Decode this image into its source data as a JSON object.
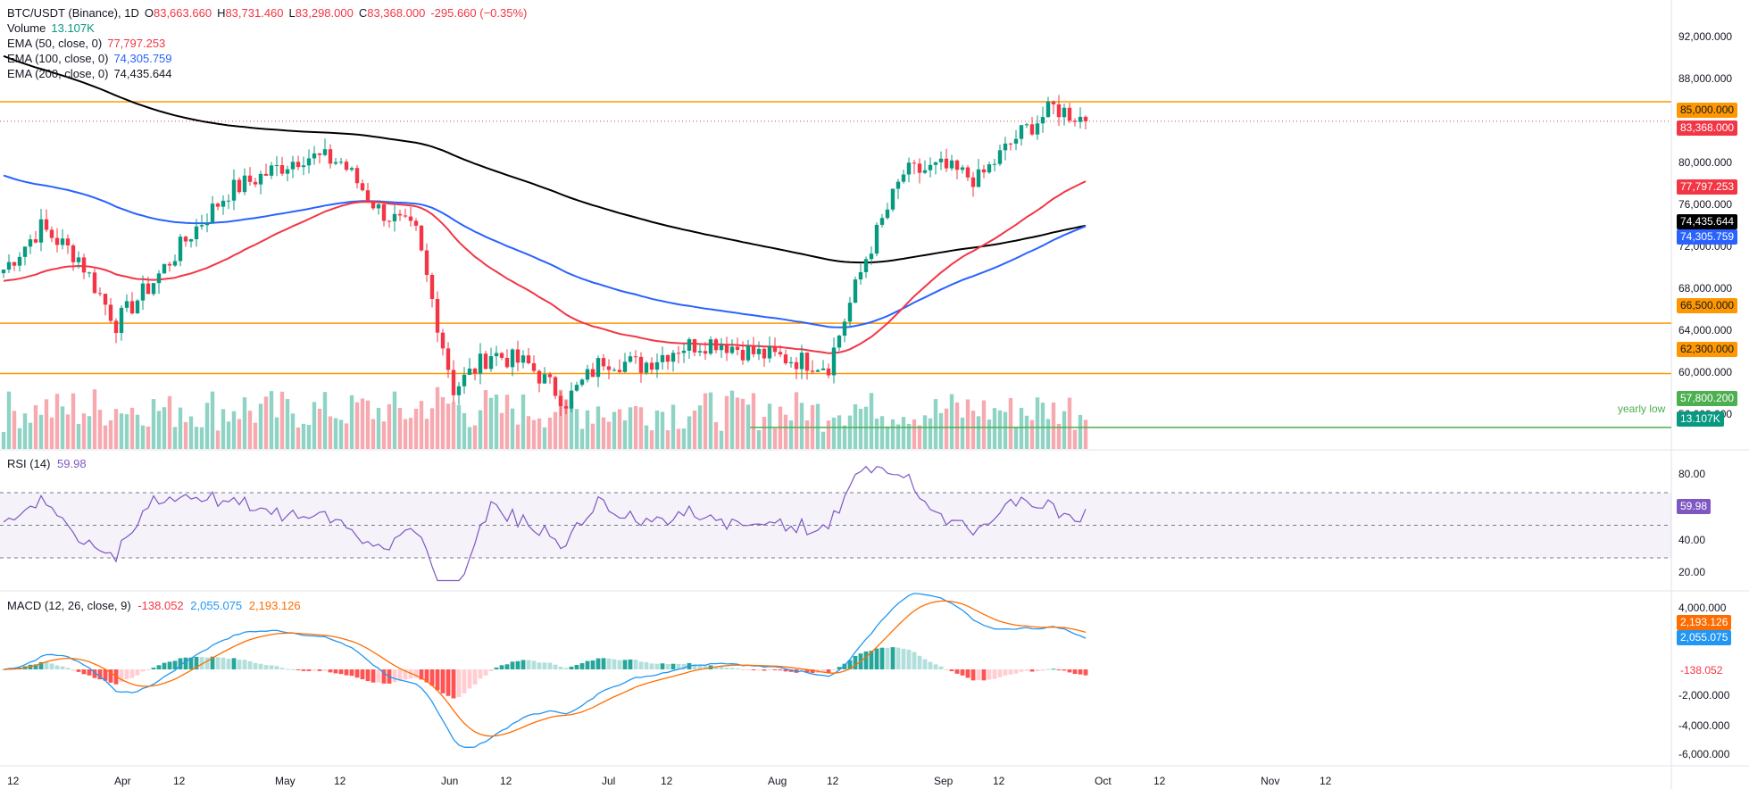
{
  "header": {
    "symbol": "BTC/USDT (Binance), 1D",
    "open_label": "O",
    "open": "83,663.660",
    "high_label": "H",
    "high": "83,731.460",
    "low_label": "L",
    "low": "83,298.000",
    "close_label": "C",
    "close": "83,368.000",
    "change": "-295.660 (−0.35%)",
    "volume_label": "Volume",
    "volume": "13.107K",
    "ema50_label": "EMA (50, close, 0)",
    "ema50": "77,797.253",
    "ema100_label": "EMA (100, close, 0)",
    "ema100": "74,305.759",
    "ema200_label": "EMA (200, close, 0)",
    "ema200": "74,435.644"
  },
  "price_axis": [
    "92,000.000",
    "88,000.000",
    "80,000.000",
    "76,000.000",
    "72,000.000",
    "68,000.000",
    "64,000.000",
    "60,000.000",
    "56,000.000"
  ],
  "time_axis": [
    "12",
    "Apr",
    "12",
    "May",
    "12",
    "Jun",
    "12",
    "Jul",
    "12",
    "Aug",
    "12",
    "Sep",
    "12",
    "Oct",
    "12",
    "Nov",
    "12"
  ],
  "levels": [
    {
      "label": "85,000.000",
      "color": "#ff9800"
    },
    {
      "label": "66,500.000",
      "color": "#ff9800"
    },
    {
      "label": "62,300.000",
      "color": "#ff9800"
    },
    {
      "label": "57,800.200",
      "color": "#4caf50",
      "note": "yearly low"
    }
  ],
  "price_tags": {
    "last": "83,368.000",
    "ema50": "77,797.253",
    "ema200": "74,435.644",
    "ema100": "74,305.759",
    "volume": "13.107K"
  },
  "rsi": {
    "label": "RSI (14)",
    "value": "59.98",
    "axis": [
      "80.00",
      "40.00",
      "20.00"
    ],
    "color": "#7e57c2"
  },
  "macd": {
    "label": "MACD (12, 26, close, 9)",
    "hist": "-138.052",
    "macd": "2,055.075",
    "signal": "2,193.126",
    "axis": [
      "4,000.000",
      "-2,000.000",
      "-4,000.000",
      "-6,000.000"
    ],
    "macd_color": "#2196f3",
    "signal_color": "#ff6d00"
  },
  "colors": {
    "up": "#089981",
    "down": "#f23645",
    "ema50": "#f23645",
    "ema100": "#2962ff",
    "ema200": "#000000",
    "vol_up": "#8fd3c5",
    "vol_down": "#f7a9b0"
  },
  "chart_data": {
    "type": "candlestick",
    "title": "BTC/USDT (Binance), 1D",
    "ylim": [
      56000,
      93500
    ],
    "x_range": [
      "2025-03-10",
      "2025-11-18"
    ],
    "hlines": [
      85000,
      66500,
      62300,
      57800.2
    ],
    "closes_weekly": [
      {
        "date": "2025-03-10",
        "close": 71000
      },
      {
        "date": "2025-03-17",
        "close": 74500
      },
      {
        "date": "2025-03-24",
        "close": 72000
      },
      {
        "date": "2025-03-31",
        "close": 66500
      },
      {
        "date": "2025-04-07",
        "close": 70000
      },
      {
        "date": "2025-04-14",
        "close": 74000
      },
      {
        "date": "2025-04-21",
        "close": 77500
      },
      {
        "date": "2025-04-28",
        "close": 79000
      },
      {
        "date": "2025-05-05",
        "close": 80500
      },
      {
        "date": "2025-05-12",
        "close": 80000
      },
      {
        "date": "2025-05-19",
        "close": 76000
      },
      {
        "date": "2025-05-26",
        "close": 74000
      },
      {
        "date": "2025-06-02",
        "close": 61000
      },
      {
        "date": "2025-06-09",
        "close": 64000
      },
      {
        "date": "2025-06-16",
        "close": 63000
      },
      {
        "date": "2025-06-23",
        "close": 60000
      },
      {
        "date": "2025-06-30",
        "close": 63500
      },
      {
        "date": "2025-07-07",
        "close": 63000
      },
      {
        "date": "2025-07-14",
        "close": 64500
      },
      {
        "date": "2025-07-21",
        "close": 65000
      },
      {
        "date": "2025-07-28",
        "close": 64000
      },
      {
        "date": "2025-08-04",
        "close": 63500
      },
      {
        "date": "2025-08-11",
        "close": 63000
      },
      {
        "date": "2025-08-18",
        "close": 72000
      },
      {
        "date": "2025-08-25",
        "close": 79000
      },
      {
        "date": "2025-09-01",
        "close": 79500
      },
      {
        "date": "2025-09-08",
        "close": 78500
      },
      {
        "date": "2025-09-15",
        "close": 82000
      },
      {
        "date": "2025-09-22",
        "close": 84500
      },
      {
        "date": "2025-09-29",
        "close": 83368
      }
    ],
    "last": {
      "open": 83663.66,
      "high": 83731.46,
      "low": 83298,
      "close": 83368,
      "volume": "13.107K"
    },
    "ema": {
      "ema50": 77797.253,
      "ema100": 74305.759,
      "ema200": 74435.644
    },
    "rsi14": 59.98,
    "macd": {
      "macd": 2055.075,
      "signal": 2193.126,
      "histogram": -138.052
    }
  }
}
